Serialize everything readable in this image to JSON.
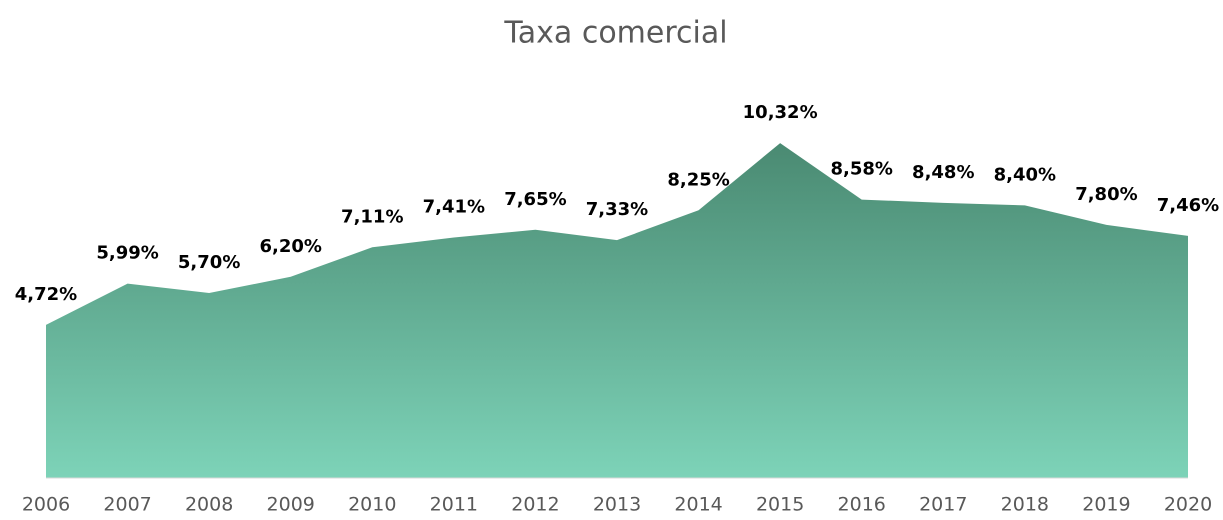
{
  "chart_data": {
    "type": "area",
    "title": "Taxa comercial",
    "categories": [
      "2006",
      "2007",
      "2008",
      "2009",
      "2010",
      "2011",
      "2012",
      "2013",
      "2014",
      "2015",
      "2016",
      "2017",
      "2018",
      "2019",
      "2020"
    ],
    "values": [
      4.72,
      5.99,
      5.7,
      6.2,
      7.11,
      7.41,
      7.65,
      7.33,
      8.25,
      10.32,
      8.58,
      8.48,
      8.4,
      7.8,
      7.46
    ],
    "value_labels": [
      "4,72%",
      "5,99%",
      "5,70%",
      "6,20%",
      "7,11%",
      "7,41%",
      "7,65%",
      "7,33%",
      "8,25%",
      "10,32%",
      "8,58%",
      "8,48%",
      "8,40%",
      "7,80%",
      "7,46%"
    ],
    "color": "#4a8a72",
    "color_bottom": "#7dd3b8",
    "ylim": [
      0,
      12
    ]
  }
}
